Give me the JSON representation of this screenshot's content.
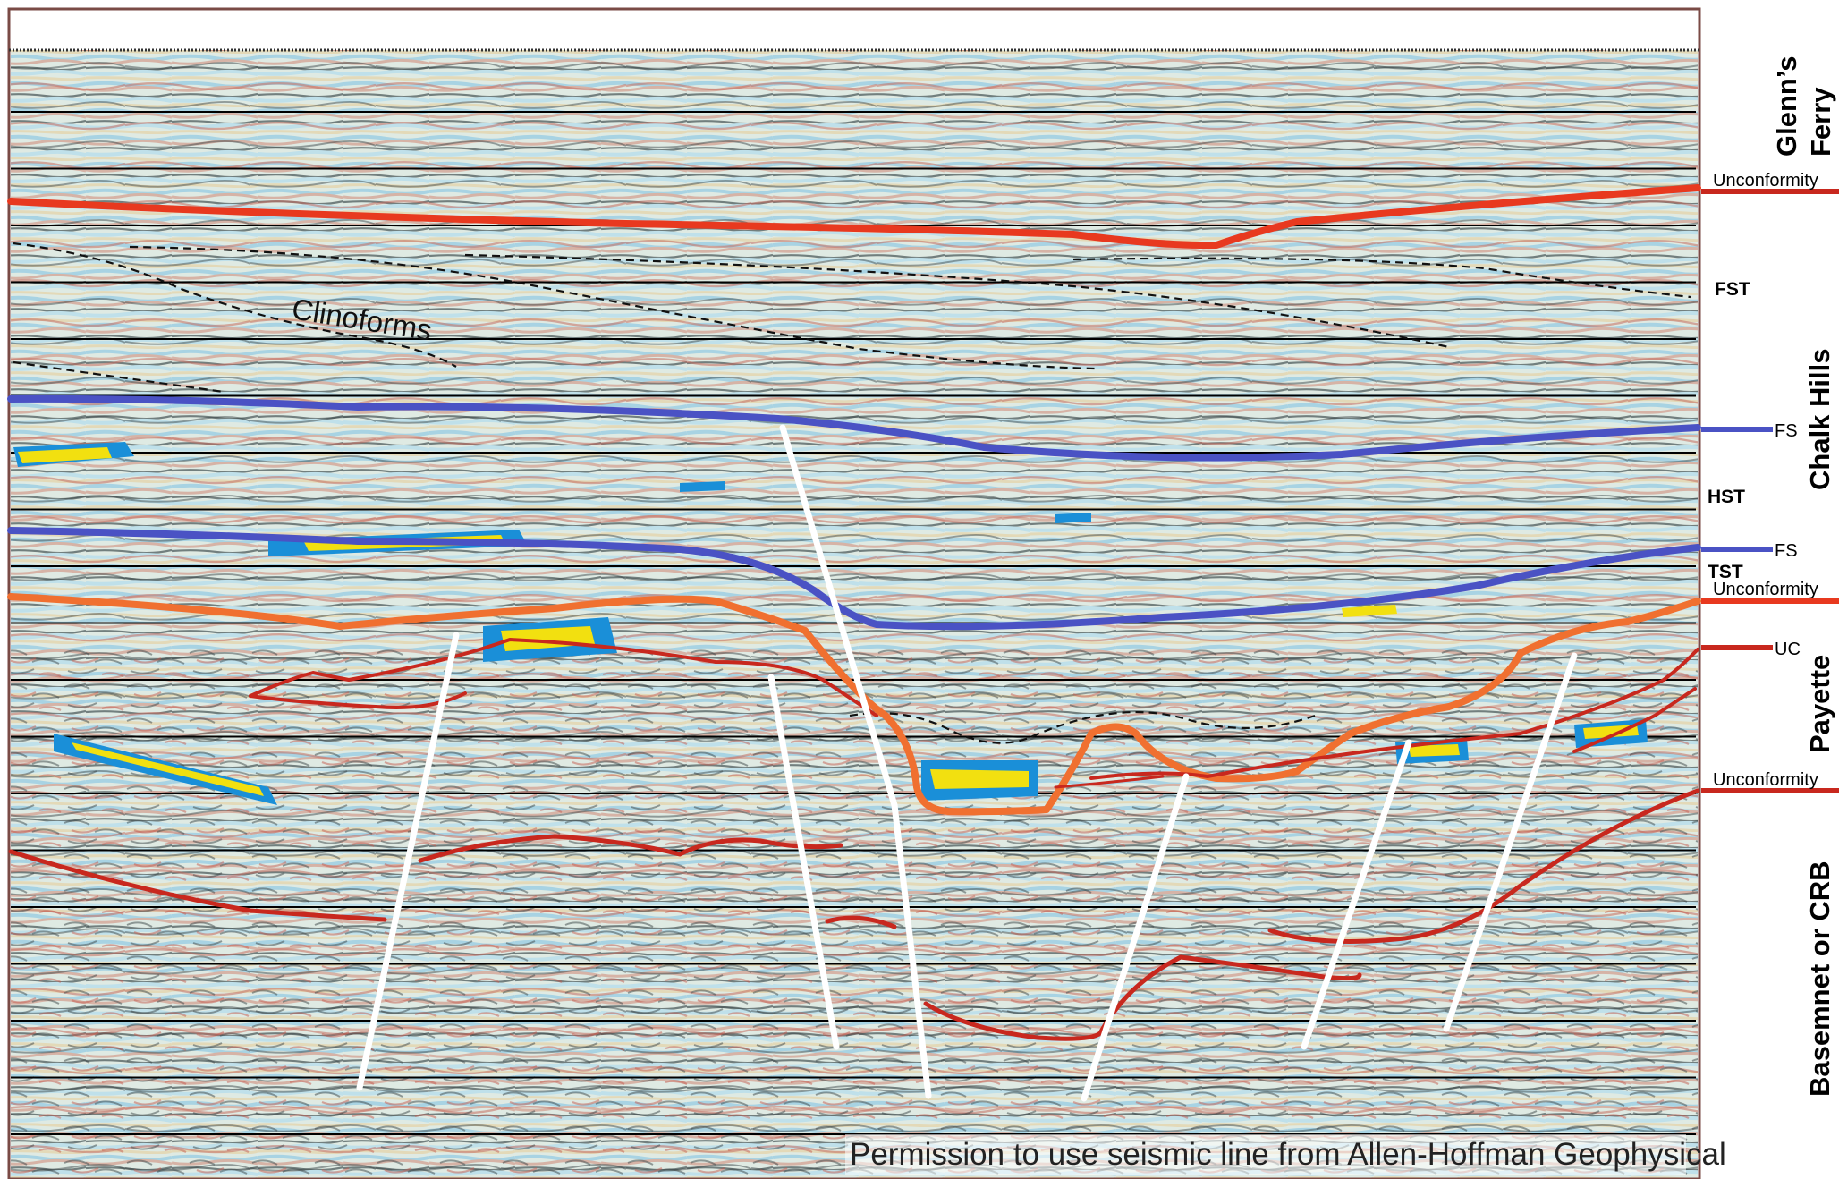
{
  "annotation": {
    "clinoforms_label": "Clinoforms",
    "credit": "Permission to use seismic line from Allen-Hoffman Geophysical"
  },
  "formations": {
    "glenns_ferry": {
      "line1": "Glenn’s",
      "line2": "Ferry"
    },
    "chalk_hills": "Chalk Hills",
    "payette": "Payette",
    "basement": "Basemnet or CRB"
  },
  "boundaries": {
    "unconformity_top": "Unconformity",
    "fs_upper": "FS",
    "fs_lower": "FS",
    "unconformity_mid": "Unconformity",
    "uc": "UC",
    "unconformity_base": "Unconformity"
  },
  "systems_tracts": {
    "fst": "FST",
    "hst": "HST",
    "tst": "TST"
  },
  "colors": {
    "unconformity": "#e8391f",
    "unconformity_lower": "#c8281e",
    "flooding_surface": "#4a52c4",
    "fault": "#ffffff",
    "seismic_red": "#c9554a",
    "seismic_blue": "#9fd2e4",
    "seismic_green": "#d9e4c0",
    "highlight_yellow": "#f2e010",
    "highlight_blue": "#1a8fd8"
  }
}
